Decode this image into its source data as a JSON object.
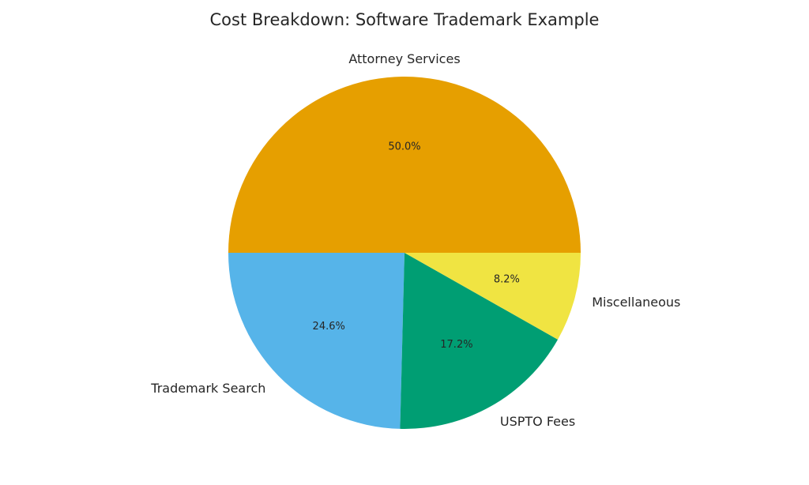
{
  "chart_data": {
    "type": "pie",
    "title": "Cost Breakdown: Software Trademark Example",
    "start_angle_deg": 0,
    "direction": "counterclockwise",
    "slices": [
      {
        "label": "Attorney Services",
        "value": 50.0,
        "pct_label": "50.0%",
        "color": "#E69F00"
      },
      {
        "label": "Trademark Search",
        "value": 24.6,
        "pct_label": "24.6%",
        "color": "#56B4E9"
      },
      {
        "label": "USPTO Fees",
        "value": 17.2,
        "pct_label": "17.2%",
        "color": "#009E73"
      },
      {
        "label": "Miscellaneous",
        "value": 8.2,
        "pct_label": "8.2%",
        "color": "#F0E442"
      }
    ]
  }
}
